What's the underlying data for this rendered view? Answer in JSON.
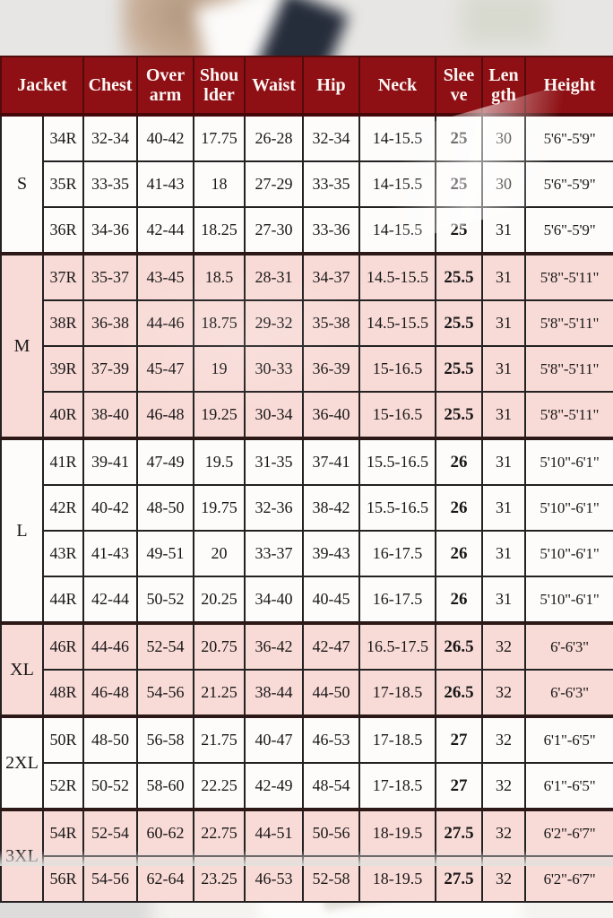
{
  "colors": {
    "header_bg": "#8e1014",
    "header_text": "#fdf6f4",
    "row_pink": "#f8dbd7",
    "row_white": "#fdfcfb",
    "grid_line": "#232122"
  },
  "table": {
    "headers": [
      {
        "label": "Jacket",
        "colspan": 2
      },
      {
        "label": "Chest",
        "colspan": 1
      },
      {
        "label": "Over\narm",
        "colspan": 1
      },
      {
        "label": "Shou\nlder",
        "colspan": 1
      },
      {
        "label": "Waist",
        "colspan": 1
      },
      {
        "label": "Hip",
        "colspan": 1
      },
      {
        "label": "Neck",
        "colspan": 1
      },
      {
        "label": "Slee\nve",
        "colspan": 1
      },
      {
        "label": "Len\ngth",
        "colspan": 1
      },
      {
        "label": "Height",
        "colspan": 1
      }
    ],
    "groups": [
      {
        "size": "S",
        "shade": "white",
        "rows": [
          [
            "34R",
            "32-34",
            "40-42",
            "17.75",
            "26-28",
            "32-34",
            "14-15.5",
            "25",
            "30",
            "5'6\"-5'9\""
          ],
          [
            "35R",
            "33-35",
            "41-43",
            "18",
            "27-29",
            "33-35",
            "14-15.5",
            "25",
            "30",
            "5'6\"-5'9\""
          ],
          [
            "36R",
            "34-36",
            "42-44",
            "18.25",
            "27-30",
            "33-36",
            "14-15.5",
            "25",
            "31",
            "5'6\"-5'9\""
          ]
        ]
      },
      {
        "size": "M",
        "shade": "pink",
        "rows": [
          [
            "37R",
            "35-37",
            "43-45",
            "18.5",
            "28-31",
            "34-37",
            "14.5-15.5",
            "25.5",
            "31",
            "5'8\"-5'11\""
          ],
          [
            "38R",
            "36-38",
            "44-46",
            "18.75",
            "29-32",
            "35-38",
            "14.5-15.5",
            "25.5",
            "31",
            "5'8\"-5'11\""
          ],
          [
            "39R",
            "37-39",
            "45-47",
            "19",
            "30-33",
            "36-39",
            "15-16.5",
            "25.5",
            "31",
            "5'8\"-5'11\""
          ],
          [
            "40R",
            "38-40",
            "46-48",
            "19.25",
            "30-34",
            "36-40",
            "15-16.5",
            "25.5",
            "31",
            "5'8\"-5'11\""
          ]
        ]
      },
      {
        "size": "L",
        "shade": "white",
        "rows": [
          [
            "41R",
            "39-41",
            "47-49",
            "19.5",
            "31-35",
            "37-41",
            "15.5-16.5",
            "26",
            "31",
            "5'10\"-6'1\""
          ],
          [
            "42R",
            "40-42",
            "48-50",
            "19.75",
            "32-36",
            "38-42",
            "15.5-16.5",
            "26",
            "31",
            "5'10\"-6'1\""
          ],
          [
            "43R",
            "41-43",
            "49-51",
            "20",
            "33-37",
            "39-43",
            "16-17.5",
            "26",
            "31",
            "5'10\"-6'1\""
          ],
          [
            "44R",
            "42-44",
            "50-52",
            "20.25",
            "34-40",
            "40-45",
            "16-17.5",
            "26",
            "31",
            "5'10\"-6'1\""
          ]
        ]
      },
      {
        "size": "XL",
        "shade": "pink",
        "rows": [
          [
            "46R",
            "44-46",
            "52-54",
            "20.75",
            "36-42",
            "42-47",
            "16.5-17.5",
            "26.5",
            "32",
            "6'-6'3\""
          ],
          [
            "48R",
            "46-48",
            "54-56",
            "21.25",
            "38-44",
            "44-50",
            "17-18.5",
            "26.5",
            "32",
            "6'-6'3\""
          ]
        ]
      },
      {
        "size": "2XL",
        "shade": "white",
        "rows": [
          [
            "50R",
            "48-50",
            "56-58",
            "21.75",
            "40-47",
            "46-53",
            "17-18.5",
            "27",
            "32",
            "6'1\"-6'5\""
          ],
          [
            "52R",
            "50-52",
            "58-60",
            "22.25",
            "42-49",
            "48-54",
            "17-18.5",
            "27",
            "32",
            "6'1\"-6'5\""
          ]
        ]
      },
      {
        "size": "3XL",
        "shade": "pink",
        "rows": [
          [
            "54R",
            "52-54",
            "60-62",
            "22.75",
            "44-51",
            "50-56",
            "18-19.5",
            "27.5",
            "32",
            "6'2\"-6'7\""
          ],
          [
            "56R",
            "54-56",
            "62-64",
            "23.25",
            "46-53",
            "52-58",
            "18-19.5",
            "27.5",
            "32",
            "6'2\"-6'7\""
          ]
        ]
      }
    ]
  }
}
